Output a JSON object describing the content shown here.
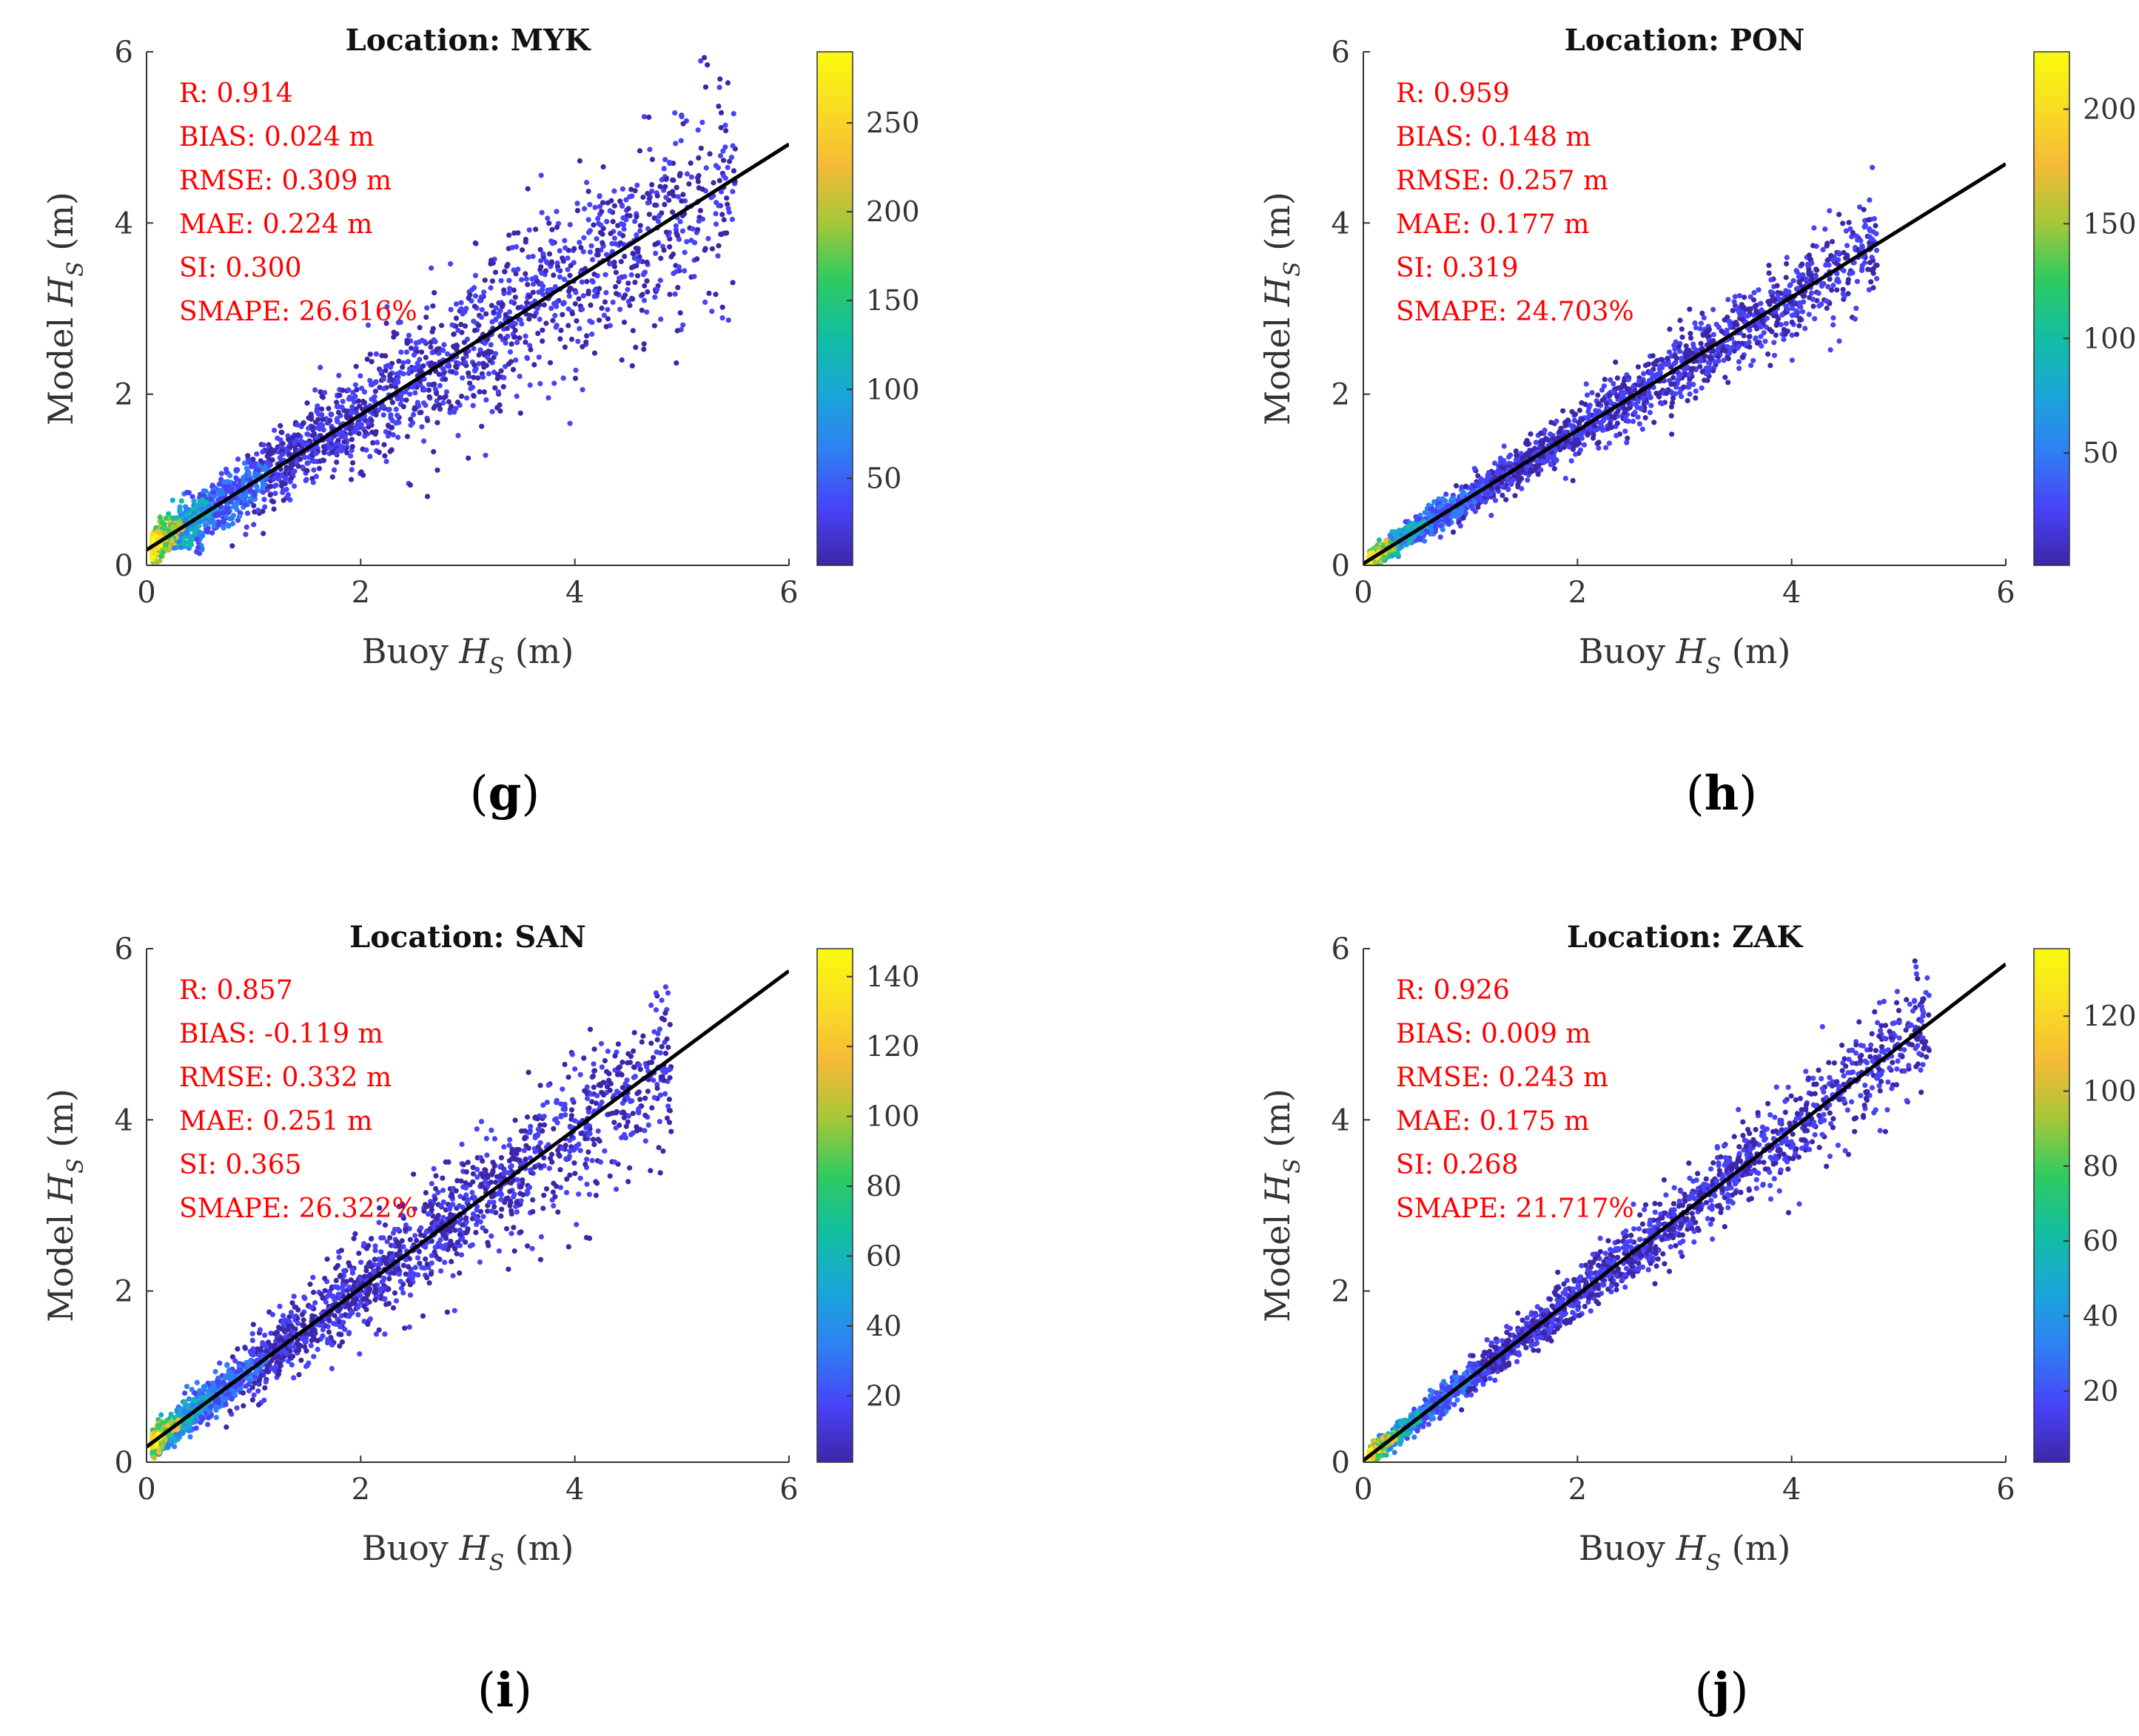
{
  "chart_data": [
    {
      "type": "scatter",
      "title": "Location: MYK",
      "panel_letter": "g",
      "xlabel": "Buoy",
      "ylabel": "Model",
      "var_symbol": "H",
      "var_subscript": "S",
      "unit": "(m)",
      "xlim": [
        0,
        6
      ],
      "ylim": [
        0,
        6
      ],
      "xticks": [
        0,
        2,
        4,
        6
      ],
      "yticks": [
        0,
        2,
        4,
        6
      ],
      "stats": [
        "R: 0.914",
        "BIAS: 0.024 m",
        "RMSE: 0.309 m",
        "MAE: 0.224 m",
        "SI: 0.300",
        "SMAPE: 26.616%"
      ],
      "fit_line": {
        "x": [
          0,
          6
        ],
        "y": [
          0.18,
          4.92
        ]
      },
      "scatter_spread": [
        0.25,
        0.9
      ],
      "x_max": 5.5,
      "colorbar": {
        "min": 1,
        "max": 290,
        "ticks": [
          50,
          100,
          150,
          200,
          250
        ]
      }
    },
    {
      "type": "scatter",
      "title": "Location: PON",
      "panel_letter": "h",
      "xlabel": "Buoy",
      "ylabel": "Model",
      "var_symbol": "H",
      "var_subscript": "S",
      "unit": "(m)",
      "xlim": [
        0,
        6
      ],
      "ylim": [
        0,
        6
      ],
      "xticks": [
        0,
        2,
        4,
        6
      ],
      "yticks": [
        0,
        2,
        4,
        6
      ],
      "stats": [
        "R: 0.959",
        "BIAS: 0.148 m",
        "RMSE: 0.257 m",
        "MAE: 0.177 m",
        "SI: 0.319",
        "SMAPE: 24.703%"
      ],
      "fit_line": {
        "x": [
          0,
          6
        ],
        "y": [
          0.02,
          4.69
        ]
      },
      "scatter_spread": [
        0.12,
        0.45
      ],
      "x_max": 4.8,
      "colorbar": {
        "min": 1,
        "max": 225,
        "ticks": [
          50,
          100,
          150,
          200
        ]
      }
    },
    {
      "type": "scatter",
      "title": "Location: SAN",
      "panel_letter": "i",
      "xlabel": "Buoy",
      "ylabel": "Model",
      "var_symbol": "H",
      "var_subscript": "S",
      "unit": "(m)",
      "xlim": [
        0,
        6
      ],
      "ylim": [
        0,
        6
      ],
      "xticks": [
        0,
        2,
        4,
        6
      ],
      "yticks": [
        0,
        2,
        4,
        6
      ],
      "stats": [
        "R: 0.857",
        "BIAS: -0.119 m",
        "RMSE: 0.332 m",
        "MAE: 0.251 m",
        "SI: 0.365",
        "SMAPE: 26.322%"
      ],
      "fit_line": {
        "x": [
          0,
          6
        ],
        "y": [
          0.18,
          5.74
        ]
      },
      "scatter_spread": [
        0.2,
        0.55
      ],
      "x_max": 4.9,
      "colorbar": {
        "min": 1,
        "max": 148,
        "ticks": [
          20,
          40,
          60,
          80,
          100,
          120,
          140
        ]
      }
    },
    {
      "type": "scatter",
      "title": "Location: ZAK",
      "panel_letter": "j",
      "xlabel": "Buoy",
      "ylabel": "Model",
      "var_symbol": "H",
      "var_subscript": "S",
      "unit": "(m)",
      "xlim": [
        0,
        6
      ],
      "ylim": [
        0,
        6
      ],
      "xticks": [
        0,
        2,
        4,
        6
      ],
      "yticks": [
        0,
        2,
        4,
        6
      ],
      "stats": [
        "R: 0.926",
        "BIAS: 0.009 m",
        "RMSE: 0.243 m",
        "MAE: 0.175 m",
        "SI: 0.268",
        "SMAPE: 21.717%"
      ],
      "fit_line": {
        "x": [
          0,
          6
        ],
        "y": [
          0.02,
          5.82
        ]
      },
      "scatter_spread": [
        0.12,
        0.4
      ],
      "x_max": 5.3,
      "colorbar": {
        "min": 1,
        "max": 138,
        "ticks": [
          20,
          40,
          60,
          80,
          100,
          120
        ]
      }
    }
  ],
  "colors": {
    "stat_text": "#ff0000",
    "fit_line": "#000000",
    "axis": "#333333",
    "colormap": [
      "#3e26a8",
      "#4743f8",
      "#2f7ff4",
      "#1aa6d8",
      "#12bea2",
      "#2ecb60",
      "#a5c739",
      "#f5ba36",
      "#f9dc24",
      "#f9fb0e"
    ]
  }
}
